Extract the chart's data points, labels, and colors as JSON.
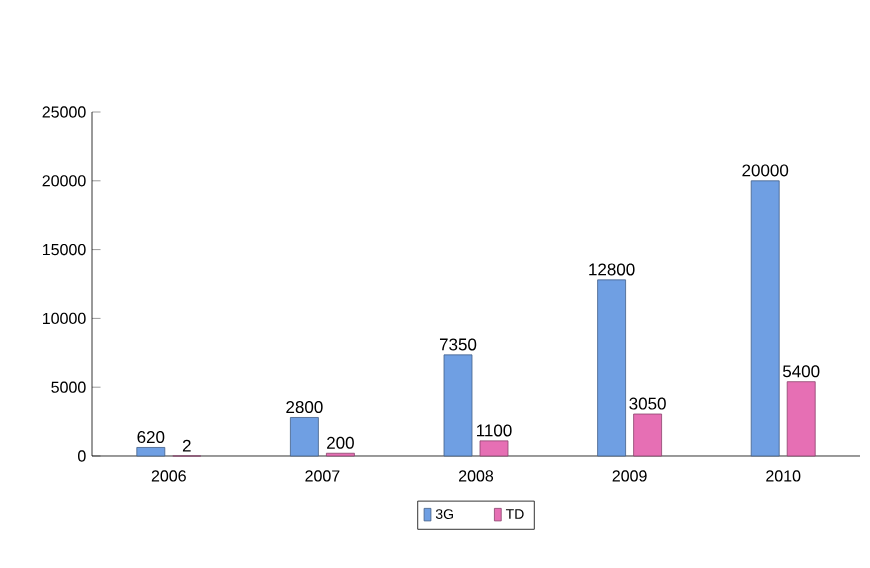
{
  "chart_data": {
    "type": "bar",
    "categories": [
      "2006",
      "2007",
      "2008",
      "2009",
      "2010"
    ],
    "series": [
      {
        "name": "3G",
        "color": "#6f9fe3",
        "values": [
          620,
          2800,
          7350,
          12800,
          20000
        ]
      },
      {
        "name": "TD",
        "color": "#e66fb4",
        "values": [
          2,
          200,
          1100,
          3050,
          5400
        ]
      }
    ],
    "ylim": [
      0,
      25000
    ],
    "yticks": [
      0,
      5000,
      10000,
      15000,
      20000,
      25000
    ],
    "data_labels": true,
    "legend": "bottom",
    "grid": false
  }
}
